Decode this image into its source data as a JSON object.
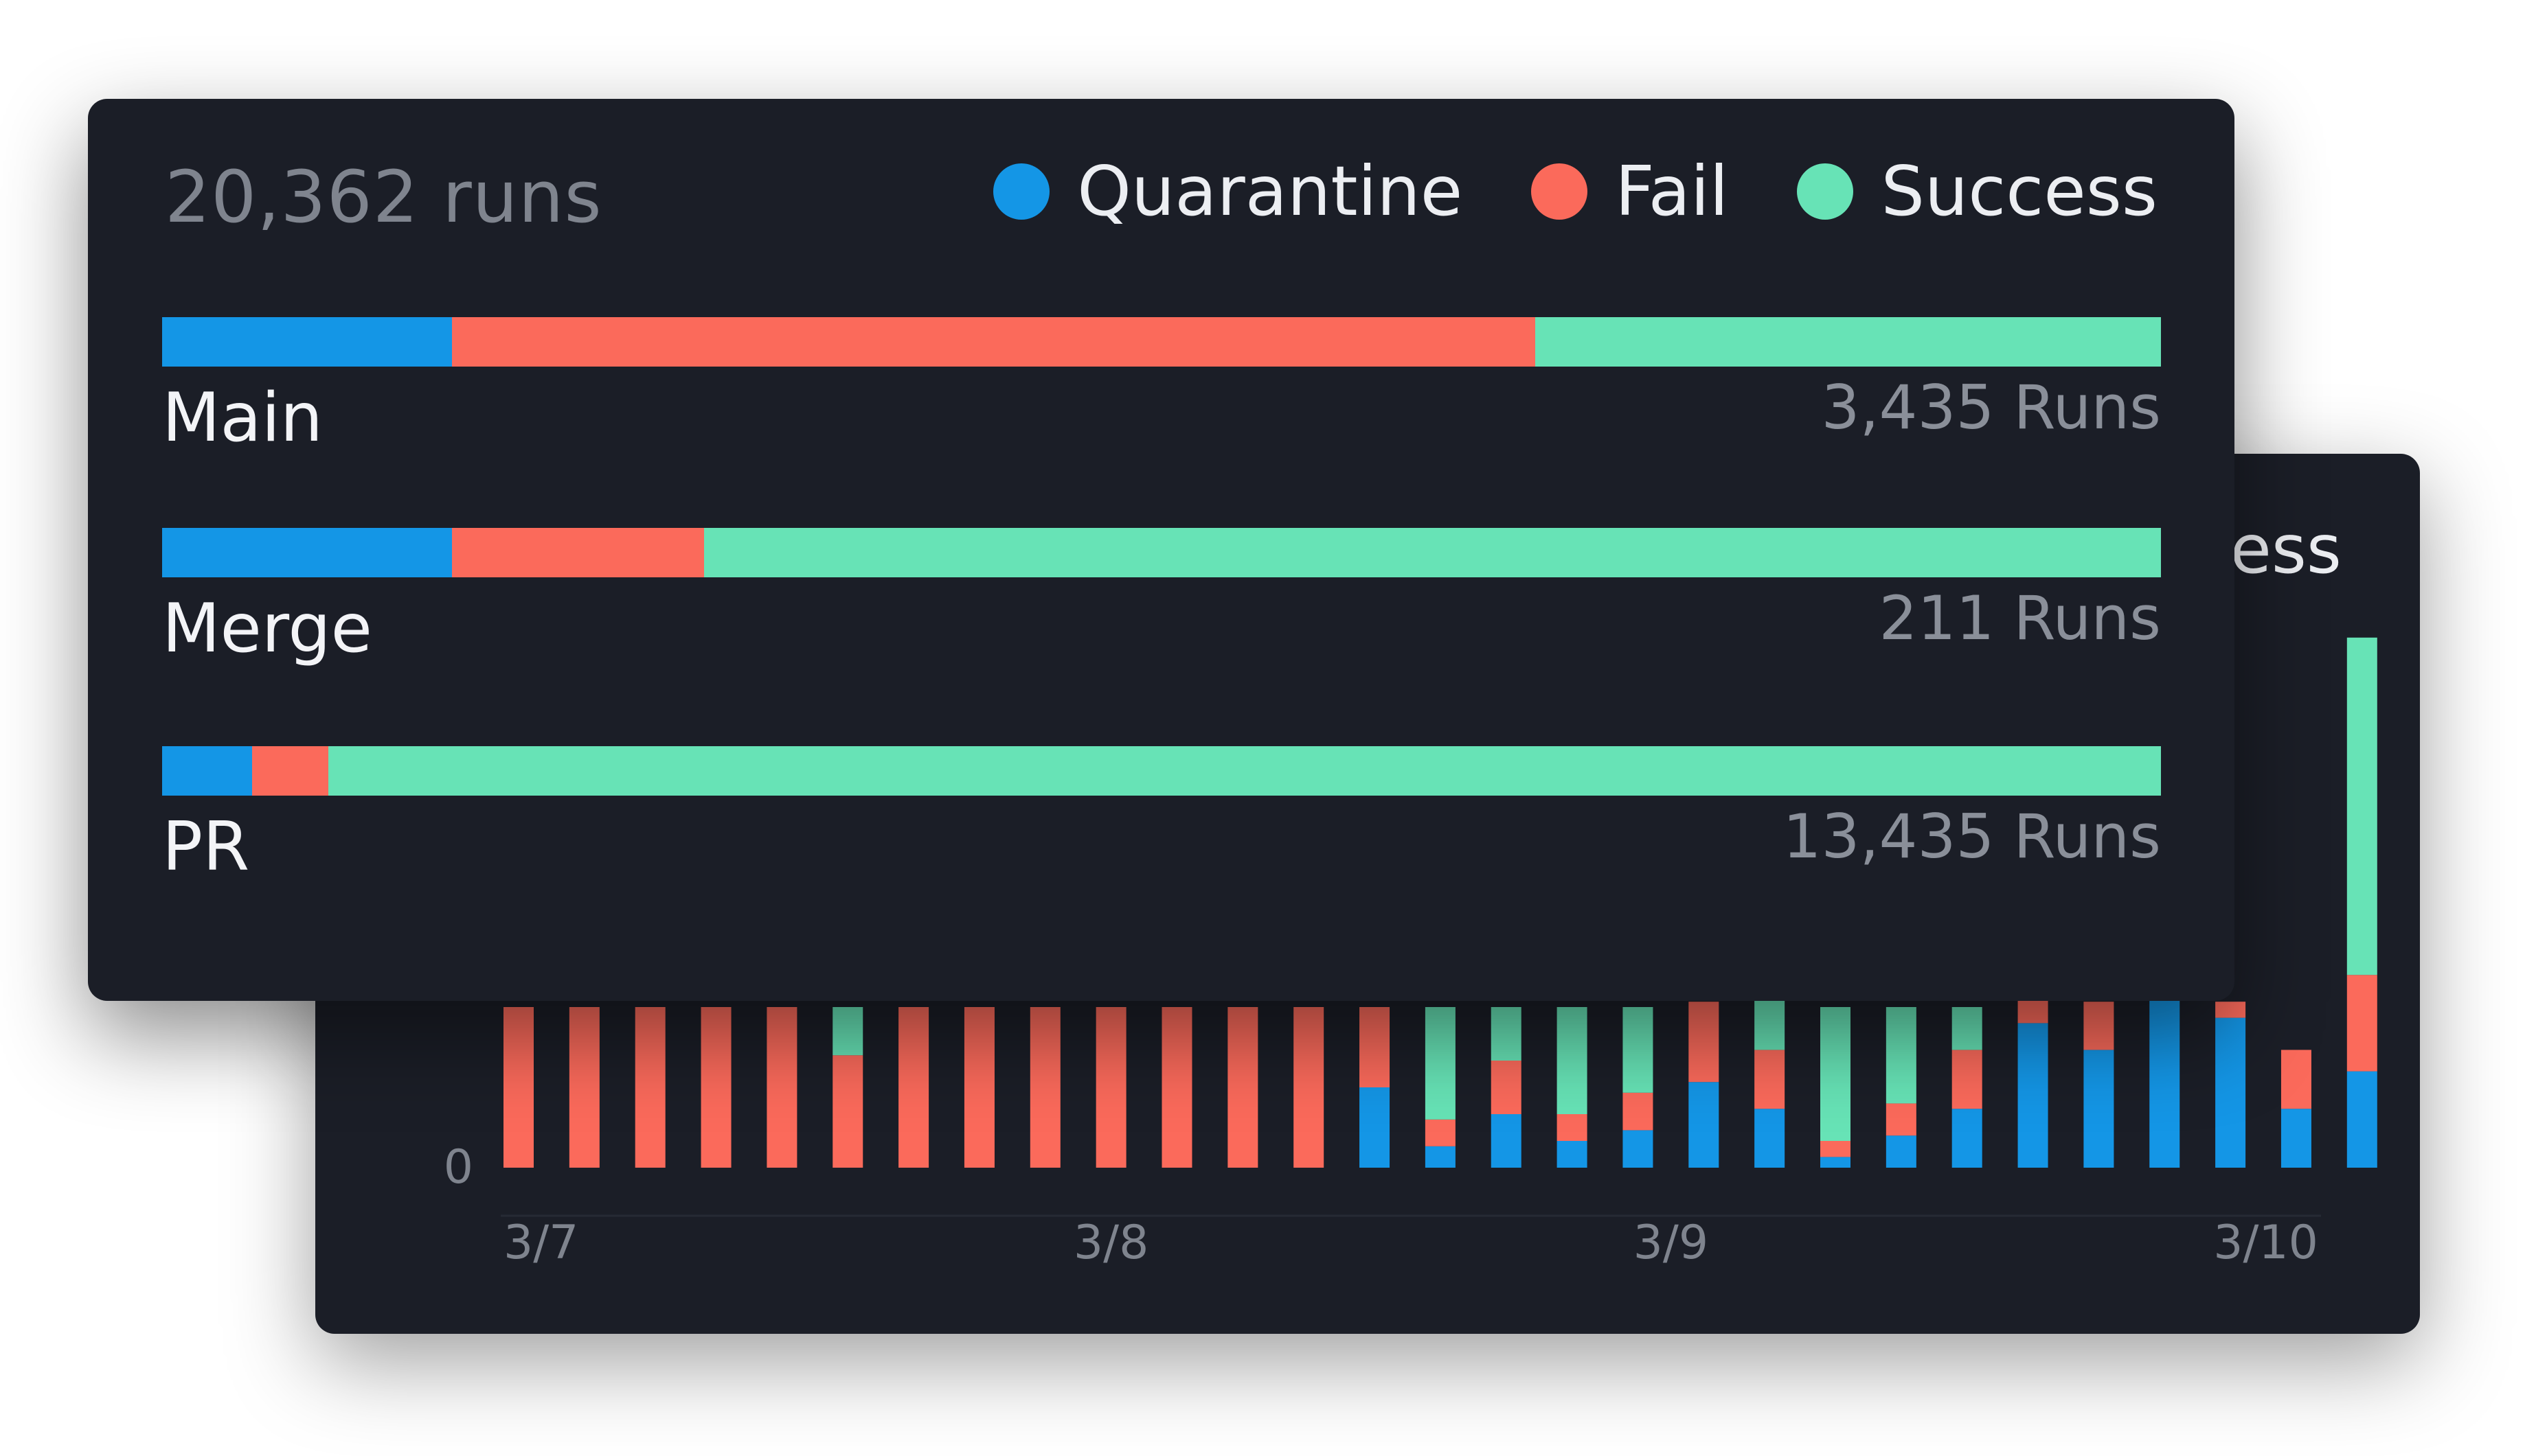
{
  "colors": {
    "quarantine": "#1496e6",
    "fail": "#fb6a5b",
    "success": "#67e3b6",
    "card_bg": "#1b1e27"
  },
  "summary": {
    "total_label": "20,362 runs"
  },
  "legend": [
    {
      "key": "quarantine",
      "label": "Quarantine"
    },
    {
      "key": "fail",
      "label": "Fail"
    },
    {
      "key": "success",
      "label": "Success"
    }
  ],
  "chart_data": [
    {
      "type": "bar",
      "orientation": "horizontal",
      "stacked": true,
      "normalized": true,
      "categories": [
        "Main",
        "Merge",
        "PR"
      ],
      "run_labels": [
        "3,435 Runs",
        "211 Runs",
        "13,435 Runs"
      ],
      "series": [
        {
          "name": "Quarantine",
          "values": [
            14.5,
            14.5,
            4.5
          ]
        },
        {
          "name": "Fail",
          "values": [
            54.2,
            12.6,
            3.8
          ]
        },
        {
          "name": "Success",
          "values": [
            31.3,
            72.9,
            91.7
          ]
        }
      ]
    },
    {
      "type": "bar",
      "stacked": true,
      "legend_partial": "ess",
      "x_ticks": [
        {
          "label": "3/7",
          "index": 0
        },
        {
          "label": "3/8",
          "index": 9
        },
        {
          "label": "3/9",
          "index": 17.5
        },
        {
          "label": "3/10",
          "index": 27
        }
      ],
      "y_ticks": [
        "0"
      ],
      "ylim": [
        0,
        100
      ],
      "series": [
        {
          "name": "Quarantine",
          "values": [
            0,
            0,
            0,
            0,
            0,
            0,
            0,
            0,
            0,
            0,
            0,
            0,
            0,
            15,
            4,
            10,
            5,
            7,
            16,
            11,
            2,
            6,
            11,
            27,
            22,
            35,
            28,
            11,
            18
          ]
        },
        {
          "name": "Fail",
          "values": [
            30,
            30,
            30,
            30,
            30,
            21,
            30,
            30,
            30,
            30,
            30,
            30,
            30,
            15,
            5,
            10,
            5,
            7,
            15,
            11,
            3,
            6,
            11,
            11,
            9,
            7,
            3,
            11,
            18
          ]
        },
        {
          "name": "Success",
          "values": [
            0,
            0,
            0,
            0,
            0,
            9,
            0,
            0,
            0,
            0,
            0,
            0,
            0,
            0,
            21,
            10,
            20,
            16,
            0,
            10,
            25,
            18,
            8,
            0,
            0,
            0,
            0,
            0,
            63
          ]
        }
      ]
    }
  ]
}
